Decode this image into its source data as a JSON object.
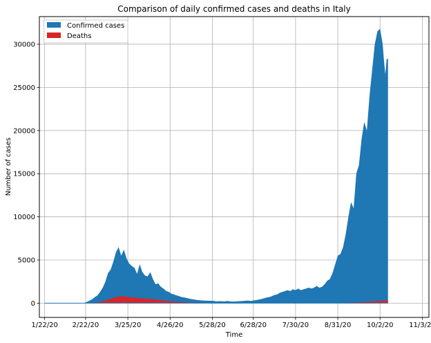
{
  "chart_data": {
    "type": "area",
    "title": "Comparison of daily confirmed cases and deaths in Italy",
    "xlabel": "Time",
    "ylabel": "Number of cases",
    "x_ticks": [
      "1/22/20",
      "2/22/20",
      "3/25/20",
      "4/26/20",
      "5/28/20",
      "6/28/20",
      "7/30/20",
      "8/31/20",
      "10/2/20",
      "11/3/20"
    ],
    "y_ticks": [
      0,
      5000,
      10000,
      15000,
      20000,
      25000,
      30000
    ],
    "xlim_day": [
      -4,
      291
    ],
    "ylim": [
      -1650,
      33200
    ],
    "grid": true,
    "legend_position": "top-left",
    "series": [
      {
        "name": "Confirmed cases",
        "color": "#1f77b4",
        "points": [
          [
            0,
            0
          ],
          [
            25,
            0
          ],
          [
            30,
            20
          ],
          [
            32,
            150
          ],
          [
            34,
            300
          ],
          [
            36,
            450
          ],
          [
            38,
            700
          ],
          [
            40,
            900
          ],
          [
            42,
            1300
          ],
          [
            44,
            1800
          ],
          [
            46,
            2500
          ],
          [
            48,
            3500
          ],
          [
            50,
            3900
          ],
          [
            52,
            4800
          ],
          [
            54,
            5900
          ],
          [
            56,
            6500
          ],
          [
            58,
            5500
          ],
          [
            60,
            6200
          ],
          [
            62,
            5200
          ],
          [
            64,
            4600
          ],
          [
            66,
            4300
          ],
          [
            68,
            4100
          ],
          [
            70,
            3400
          ],
          [
            72,
            4500
          ],
          [
            74,
            3600
          ],
          [
            76,
            3200
          ],
          [
            78,
            3100
          ],
          [
            80,
            3600
          ],
          [
            82,
            2800
          ],
          [
            84,
            2200
          ],
          [
            86,
            2300
          ],
          [
            88,
            1900
          ],
          [
            90,
            1700
          ],
          [
            92,
            1400
          ],
          [
            94,
            1300
          ],
          [
            96,
            1100
          ],
          [
            98,
            1000
          ],
          [
            100,
            900
          ],
          [
            102,
            800
          ],
          [
            104,
            700
          ],
          [
            106,
            650
          ],
          [
            108,
            580
          ],
          [
            110,
            500
          ],
          [
            112,
            450
          ],
          [
            114,
            400
          ],
          [
            116,
            350
          ],
          [
            118,
            330
          ],
          [
            120,
            300
          ],
          [
            122,
            290
          ],
          [
            124,
            280
          ],
          [
            126,
            270
          ],
          [
            128,
            260
          ],
          [
            130,
            200
          ],
          [
            132,
            230
          ],
          [
            134,
            220
          ],
          [
            136,
            200
          ],
          [
            138,
            250
          ],
          [
            140,
            220
          ],
          [
            142,
            180
          ],
          [
            144,
            190
          ],
          [
            146,
            210
          ],
          [
            148,
            230
          ],
          [
            150,
            250
          ],
          [
            152,
            280
          ],
          [
            154,
            300
          ],
          [
            156,
            250
          ],
          [
            158,
            310
          ],
          [
            160,
            350
          ],
          [
            162,
            400
          ],
          [
            164,
            480
          ],
          [
            166,
            550
          ],
          [
            168,
            650
          ],
          [
            170,
            700
          ],
          [
            172,
            800
          ],
          [
            174,
            950
          ],
          [
            176,
            1000
          ],
          [
            178,
            1200
          ],
          [
            180,
            1300
          ],
          [
            182,
            1400
          ],
          [
            184,
            1500
          ],
          [
            186,
            1400
          ],
          [
            188,
            1600
          ],
          [
            190,
            1500
          ],
          [
            192,
            1700
          ],
          [
            194,
            1500
          ],
          [
            196,
            1600
          ],
          [
            198,
            1700
          ],
          [
            200,
            1800
          ],
          [
            202,
            1700
          ],
          [
            204,
            1800
          ],
          [
            206,
            2000
          ],
          [
            208,
            1800
          ],
          [
            210,
            1900
          ],
          [
            212,
            2200
          ],
          [
            214,
            2600
          ],
          [
            216,
            2800
          ],
          [
            218,
            3500
          ],
          [
            220,
            4500
          ],
          [
            222,
            5500
          ],
          [
            224,
            5700
          ],
          [
            226,
            6500
          ],
          [
            228,
            8000
          ],
          [
            230,
            10000
          ],
          [
            232,
            11700
          ],
          [
            234,
            11000
          ],
          [
            236,
            15000
          ],
          [
            238,
            16000
          ],
          [
            240,
            19000
          ],
          [
            242,
            21000
          ],
          [
            244,
            20000
          ],
          [
            246,
            24000
          ],
          [
            248,
            27000
          ],
          [
            250,
            30000
          ],
          [
            252,
            31500
          ],
          [
            254,
            31800
          ],
          [
            256,
            30000
          ],
          [
            257,
            28000
          ],
          [
            258,
            26500
          ],
          [
            259,
            28300
          ],
          [
            260,
            28300
          ],
          [
            260,
            0
          ]
        ]
      },
      {
        "name": "Deaths",
        "color": "#d62728",
        "points": [
          [
            0,
            0
          ],
          [
            30,
            0
          ],
          [
            34,
            20
          ],
          [
            38,
            60
          ],
          [
            42,
            150
          ],
          [
            46,
            300
          ],
          [
            50,
            500
          ],
          [
            54,
            700
          ],
          [
            58,
            800
          ],
          [
            62,
            750
          ],
          [
            66,
            650
          ],
          [
            70,
            600
          ],
          [
            74,
            550
          ],
          [
            78,
            500
          ],
          [
            82,
            450
          ],
          [
            86,
            400
          ],
          [
            90,
            300
          ],
          [
            94,
            250
          ],
          [
            98,
            200
          ],
          [
            102,
            150
          ],
          [
            106,
            110
          ],
          [
            110,
            80
          ],
          [
            114,
            60
          ],
          [
            118,
            45
          ],
          [
            122,
            35
          ],
          [
            126,
            25
          ],
          [
            130,
            20
          ],
          [
            140,
            15
          ],
          [
            150,
            10
          ],
          [
            160,
            10
          ],
          [
            170,
            10
          ],
          [
            180,
            10
          ],
          [
            190,
            12
          ],
          [
            200,
            15
          ],
          [
            210,
            20
          ],
          [
            220,
            30
          ],
          [
            230,
            60
          ],
          [
            240,
            120
          ],
          [
            248,
            200
          ],
          [
            254,
            260
          ],
          [
            260,
            330
          ],
          [
            260,
            0
          ]
        ]
      }
    ]
  }
}
